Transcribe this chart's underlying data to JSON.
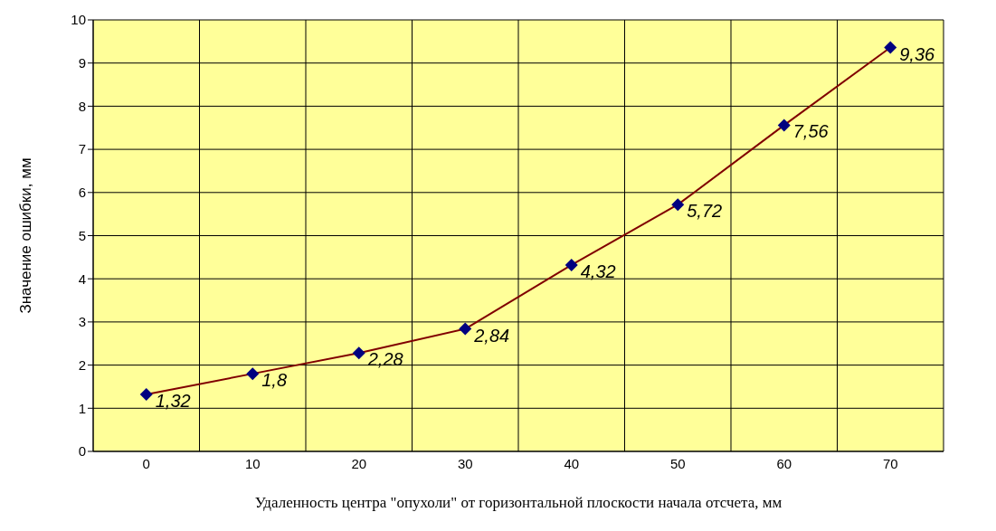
{
  "chart_data": {
    "type": "line",
    "xlabel": "Удаленность центра \"опухоли\" от горизонтальной плоскости начала отсчета, мм",
    "ylabel": "Значение ошибки, мм",
    "categories": [
      "0",
      "10",
      "20",
      "30",
      "40",
      "50",
      "60",
      "70"
    ],
    "series": [
      {
        "color": "#800000",
        "colors": [
          "#000080",
          "#000080",
          "#000080",
          "#000080",
          "#000080",
          "#000080",
          "#000080",
          "#000080"
        ],
        "values": [
          1.32,
          1.8,
          2.28,
          2.84,
          4.32,
          5.72,
          7.56,
          9.36
        ],
        "value_labels": [
          "1,32",
          "1,8",
          "2,28",
          "2,84",
          "4,32",
          "5,72",
          "7,56",
          "9,36"
        ]
      }
    ],
    "marker": "diamond",
    "ylim": [
      0,
      10
    ],
    "yticks": [
      0,
      1,
      2,
      3,
      4,
      5,
      6,
      7,
      8,
      9,
      10
    ],
    "grid": true
  }
}
